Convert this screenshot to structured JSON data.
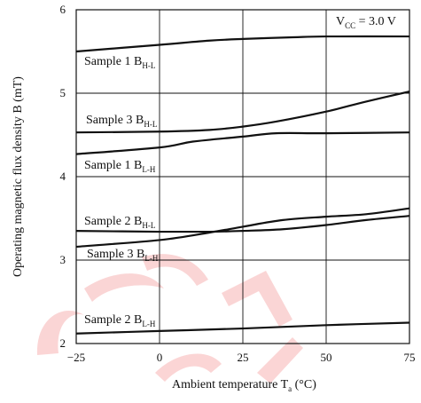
{
  "chart_data": {
    "type": "line",
    "title": "",
    "xlabel": {
      "main": "Ambient temperature  T",
      "sub": "a",
      "unit": "  (°C)"
    },
    "ylabel": "Operating magnetic flux density  B  (mT)",
    "xlim": [
      -25,
      75
    ],
    "ylim": [
      2,
      6
    ],
    "x_ticks": [
      "−25",
      "0",
      "25",
      "50",
      "75"
    ],
    "y_ticks": [
      "2",
      "3",
      "4",
      "5",
      "6"
    ],
    "grid": true,
    "annotation": {
      "main": "V",
      "sub": "CC",
      "rest": " = 3.0 V"
    },
    "series": [
      {
        "name": "Sample 1 BH-L",
        "label_main": "Sample 1  B",
        "label_sub": "H-L",
        "x": [
          -25,
          0,
          15,
          25,
          40,
          50,
          75
        ],
        "y": [
          5.5,
          5.58,
          5.63,
          5.65,
          5.67,
          5.68,
          5.68
        ]
      },
      {
        "name": "Sample 3 BH-L",
        "label_main": "Sample 3  B",
        "label_sub": "H-L",
        "x": [
          -25,
          0,
          15,
          25,
          35,
          50,
          62,
          75
        ],
        "y": [
          4.53,
          4.54,
          4.56,
          4.6,
          4.66,
          4.78,
          4.9,
          5.02
        ]
      },
      {
        "name": "Sample 1 BL-H",
        "label_main": "Sample 1  B",
        "label_sub": "L-H",
        "x": [
          -25,
          0,
          10,
          25,
          35,
          50,
          75
        ],
        "y": [
          4.27,
          4.35,
          4.42,
          4.48,
          4.52,
          4.52,
          4.53
        ]
      },
      {
        "name": "Sample 2 BH-L",
        "label_main": "Sample 2  B",
        "label_sub": "H-L",
        "x": [
          -25,
          0,
          15,
          25,
          37,
          50,
          62,
          75
        ],
        "y": [
          3.35,
          3.34,
          3.34,
          3.35,
          3.37,
          3.42,
          3.48,
          3.53
        ]
      },
      {
        "name": "Sample 3 BL-H",
        "label_main": "Sample 3  B",
        "label_sub": "L-H",
        "x": [
          -25,
          0,
          15,
          25,
          37,
          50,
          62,
          75
        ],
        "y": [
          3.16,
          3.24,
          3.33,
          3.4,
          3.48,
          3.52,
          3.55,
          3.62
        ]
      },
      {
        "name": "Sample 2 BL-H",
        "label_main": "Sample 2  B",
        "label_sub": "L-H",
        "x": [
          -25,
          0,
          25,
          50,
          75
        ],
        "y": [
          2.12,
          2.15,
          2.18,
          2.22,
          2.25
        ]
      }
    ]
  }
}
